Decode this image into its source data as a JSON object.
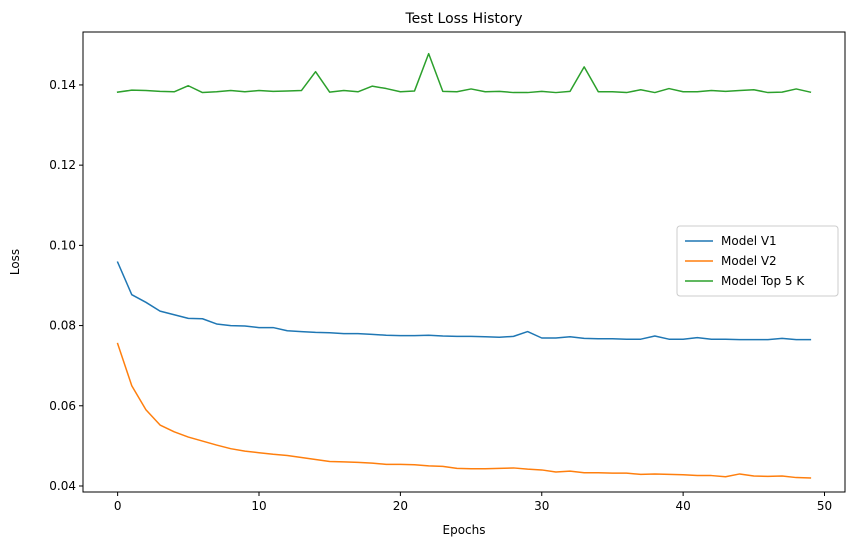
{
  "chart_data": {
    "type": "line",
    "title": "Test Loss History",
    "xlabel": "Epochs",
    "ylabel": "Loss",
    "xlim": [
      -2.45,
      51.45
    ],
    "ylim": [
      0.0385,
      0.1532
    ],
    "xticks": [
      0,
      10,
      20,
      30,
      40,
      50
    ],
    "yticks": [
      0.04,
      0.06,
      0.08,
      0.1,
      0.12,
      0.14
    ],
    "ytick_labels": [
      "0.04",
      "0.06",
      "0.08",
      "0.10",
      "0.12",
      "0.14"
    ],
    "grid": false,
    "legend_position": "center-right",
    "x": [
      0,
      1,
      2,
      3,
      4,
      5,
      6,
      7,
      8,
      9,
      10,
      11,
      12,
      13,
      14,
      15,
      16,
      17,
      18,
      19,
      20,
      21,
      22,
      23,
      24,
      25,
      26,
      27,
      28,
      29,
      30,
      31,
      32,
      33,
      34,
      35,
      36,
      37,
      38,
      39,
      40,
      41,
      42,
      43,
      44,
      45,
      46,
      47,
      48,
      49
    ],
    "series": [
      {
        "name": "Model V1",
        "color": "#1f77b4",
        "values": [
          0.0958,
          0.0877,
          0.0858,
          0.0836,
          0.0827,
          0.0818,
          0.0817,
          0.0804,
          0.08,
          0.0799,
          0.0795,
          0.0795,
          0.0787,
          0.0785,
          0.0783,
          0.0782,
          0.078,
          0.078,
          0.0778,
          0.0776,
          0.0775,
          0.0775,
          0.0776,
          0.0774,
          0.0773,
          0.0773,
          0.0772,
          0.0771,
          0.0773,
          0.0785,
          0.0769,
          0.0769,
          0.0772,
          0.0768,
          0.0767,
          0.0767,
          0.0766,
          0.0766,
          0.0774,
          0.0766,
          0.0766,
          0.077,
          0.0766,
          0.0766,
          0.0765,
          0.0765,
          0.0765,
          0.0768,
          0.0765,
          0.0765
        ]
      },
      {
        "name": "Model V2",
        "color": "#ff7f0e",
        "values": [
          0.0755,
          0.065,
          0.059,
          0.0552,
          0.0535,
          0.0522,
          0.0512,
          0.0502,
          0.0493,
          0.0487,
          0.0483,
          0.0479,
          0.0476,
          0.0471,
          0.0466,
          0.0461,
          0.046,
          0.0459,
          0.0457,
          0.0454,
          0.0454,
          0.0453,
          0.045,
          0.0449,
          0.0444,
          0.0443,
          0.0443,
          0.0444,
          0.0445,
          0.0442,
          0.044,
          0.0435,
          0.0437,
          0.0433,
          0.0433,
          0.0432,
          0.0432,
          0.0429,
          0.043,
          0.0429,
          0.0428,
          0.0426,
          0.0426,
          0.0423,
          0.043,
          0.0425,
          0.0424,
          0.0425,
          0.0421,
          0.042
        ]
      },
      {
        "name": "Model Top 5 K",
        "color": "#2ca02c",
        "values": [
          0.1382,
          0.1387,
          0.1386,
          0.1384,
          0.1383,
          0.1398,
          0.1381,
          0.1383,
          0.1386,
          0.1383,
          0.1386,
          0.1384,
          0.1385,
          0.1386,
          0.1433,
          0.1382,
          0.1386,
          0.1383,
          0.1397,
          0.1391,
          0.1383,
          0.1385,
          0.1478,
          0.1384,
          0.1383,
          0.139,
          0.1383,
          0.1384,
          0.1381,
          0.1381,
          0.1384,
          0.1381,
          0.1384,
          0.1445,
          0.1383,
          0.1383,
          0.1381,
          0.1388,
          0.1381,
          0.1391,
          0.1383,
          0.1383,
          0.1386,
          0.1384,
          0.1386,
          0.1388,
          0.1381,
          0.1382,
          0.139,
          0.1382
        ]
      }
    ]
  }
}
